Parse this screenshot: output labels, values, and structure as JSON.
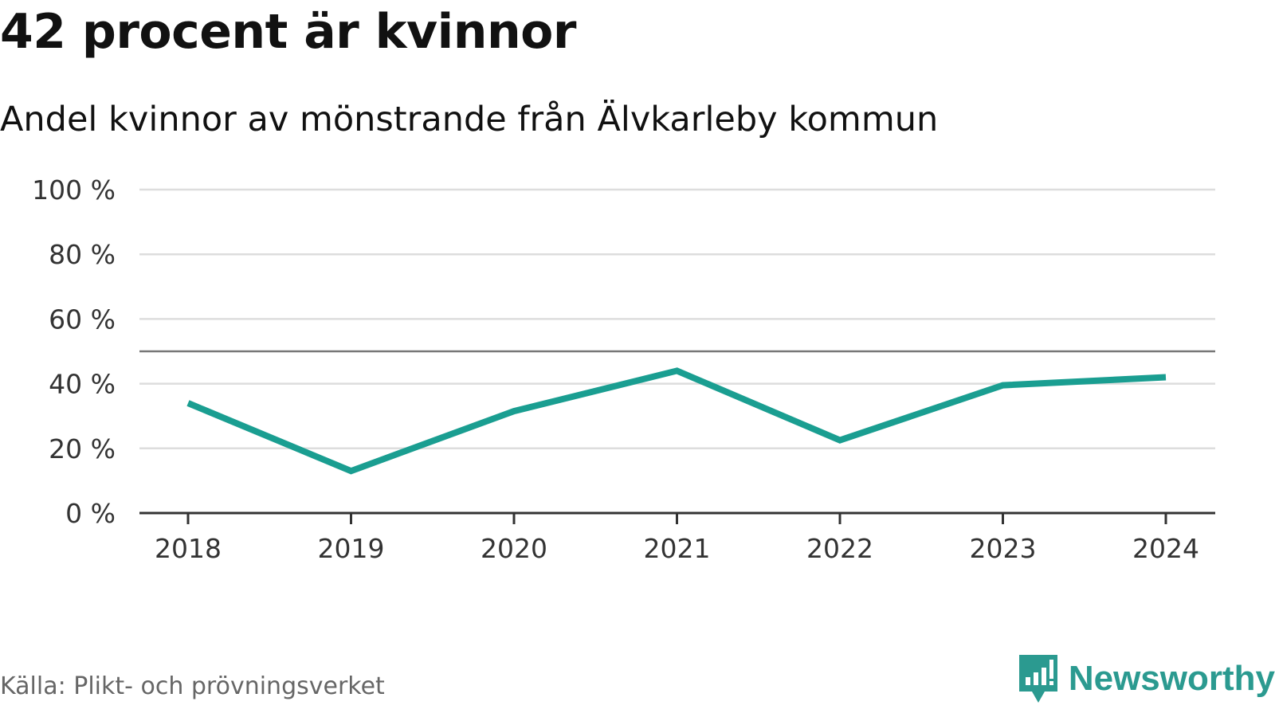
{
  "header": {
    "title": "42 procent är kvinnor",
    "subtitle": "Andel kvinnor av mönstrande från Älvkarleby kommun"
  },
  "footer": {
    "source": "Källa: Plikt- och prövningsverket",
    "brand_name": "Newsworthy",
    "brand_icon": "newsworthy-logo-icon"
  },
  "colors": {
    "line": "#1a9e91",
    "grid": "#dddddd",
    "axis": "#333333",
    "reference_line": "#777777",
    "brand": "#2b9a90"
  },
  "chart_data": {
    "type": "line",
    "title": "42 procent är kvinnor",
    "subtitle": "Andel kvinnor av mönstrande från Älvkarleby kommun",
    "xlabel": "",
    "ylabel": "",
    "x": [
      "2018",
      "2019",
      "2020",
      "2021",
      "2022",
      "2023",
      "2024"
    ],
    "series": [
      {
        "values": [
          34,
          13,
          31.5,
          44,
          22.5,
          39.5,
          42
        ]
      }
    ],
    "ylim": [
      0,
      100
    ],
    "yticks": [
      0,
      20,
      40,
      60,
      80,
      100
    ],
    "ytick_labels": [
      "0 %",
      "20 %",
      "40 %",
      "60 %",
      "80 %",
      "100 %"
    ],
    "reference_line": 50,
    "grid": true,
    "legend": "none"
  }
}
